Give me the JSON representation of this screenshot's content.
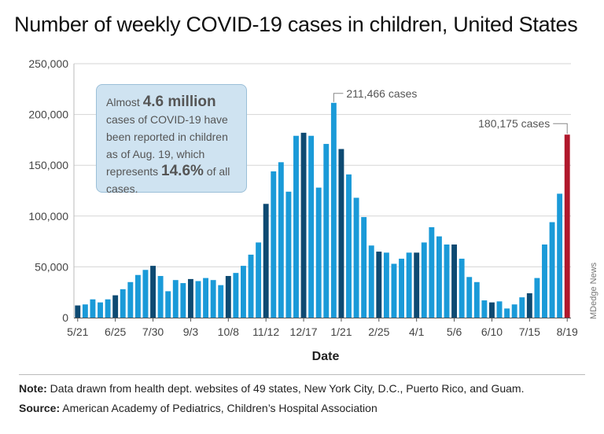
{
  "chart_data": {
    "type": "bar",
    "title": "Number of weekly COVID-19 cases in children, United States",
    "xlabel": "Date",
    "ylabel": "",
    "ylim": [
      0,
      250000
    ],
    "yticks": [
      "0",
      "50,000",
      "100,000",
      "150,000",
      "200,000",
      "250,000"
    ],
    "xticks": [
      "5/21",
      "6/25",
      "7/30",
      "9/3",
      "10/8",
      "11/12",
      "12/17",
      "1/21",
      "2/25",
      "4/1",
      "5/6",
      "6/10",
      "7/15",
      "8/19"
    ],
    "grid": true,
    "values": [
      12000,
      13000,
      18000,
      15000,
      18000,
      22000,
      28000,
      35000,
      42000,
      47000,
      51000,
      41000,
      26000,
      37000,
      34000,
      38000,
      36000,
      39000,
      37000,
      32000,
      41000,
      44000,
      51000,
      62000,
      74000,
      112000,
      144000,
      153000,
      124000,
      179000,
      182000,
      179000,
      128000,
      171000,
      211466,
      166000,
      141000,
      118000,
      99000,
      71000,
      65000,
      64000,
      53000,
      58000,
      64000,
      64000,
      74000,
      89000,
      80000,
      72000,
      72000,
      58000,
      40000,
      35000,
      17000,
      15000,
      16000,
      9000,
      13000,
      20000,
      24000,
      39000,
      72000,
      94000,
      122000,
      180175
    ],
    "colors": {
      "bar": "#1a9ad8",
      "bar_dark": "#0e4a72",
      "latest": "#b0182c",
      "grid": "#d5d5d5"
    },
    "dark_indices": [
      0,
      5,
      10,
      15,
      20,
      25,
      30,
      35,
      40,
      45,
      50,
      55,
      60
    ],
    "annotations": [
      {
        "label": "211,466 cases",
        "index": 34
      },
      {
        "label": "180,175 cases",
        "index": 65
      }
    ]
  },
  "callout": {
    "t1": "Almost ",
    "b1": "4.6 million",
    "t2": " cases of COVID-19 have been reported in children as of Aug. 19, which represents",
    "b2": "14.6%",
    "t3": " of all cases."
  },
  "side_label": "MDedge News",
  "footer": {
    "note_label": "Note:",
    "note_text": " Data drawn from health dept. websites of 49 states, New York City, D.C., Puerto Rico, and Guam.",
    "source_label": "Source:",
    "source_text": " American Academy of Pediatrics, Children’s Hospital Association"
  }
}
